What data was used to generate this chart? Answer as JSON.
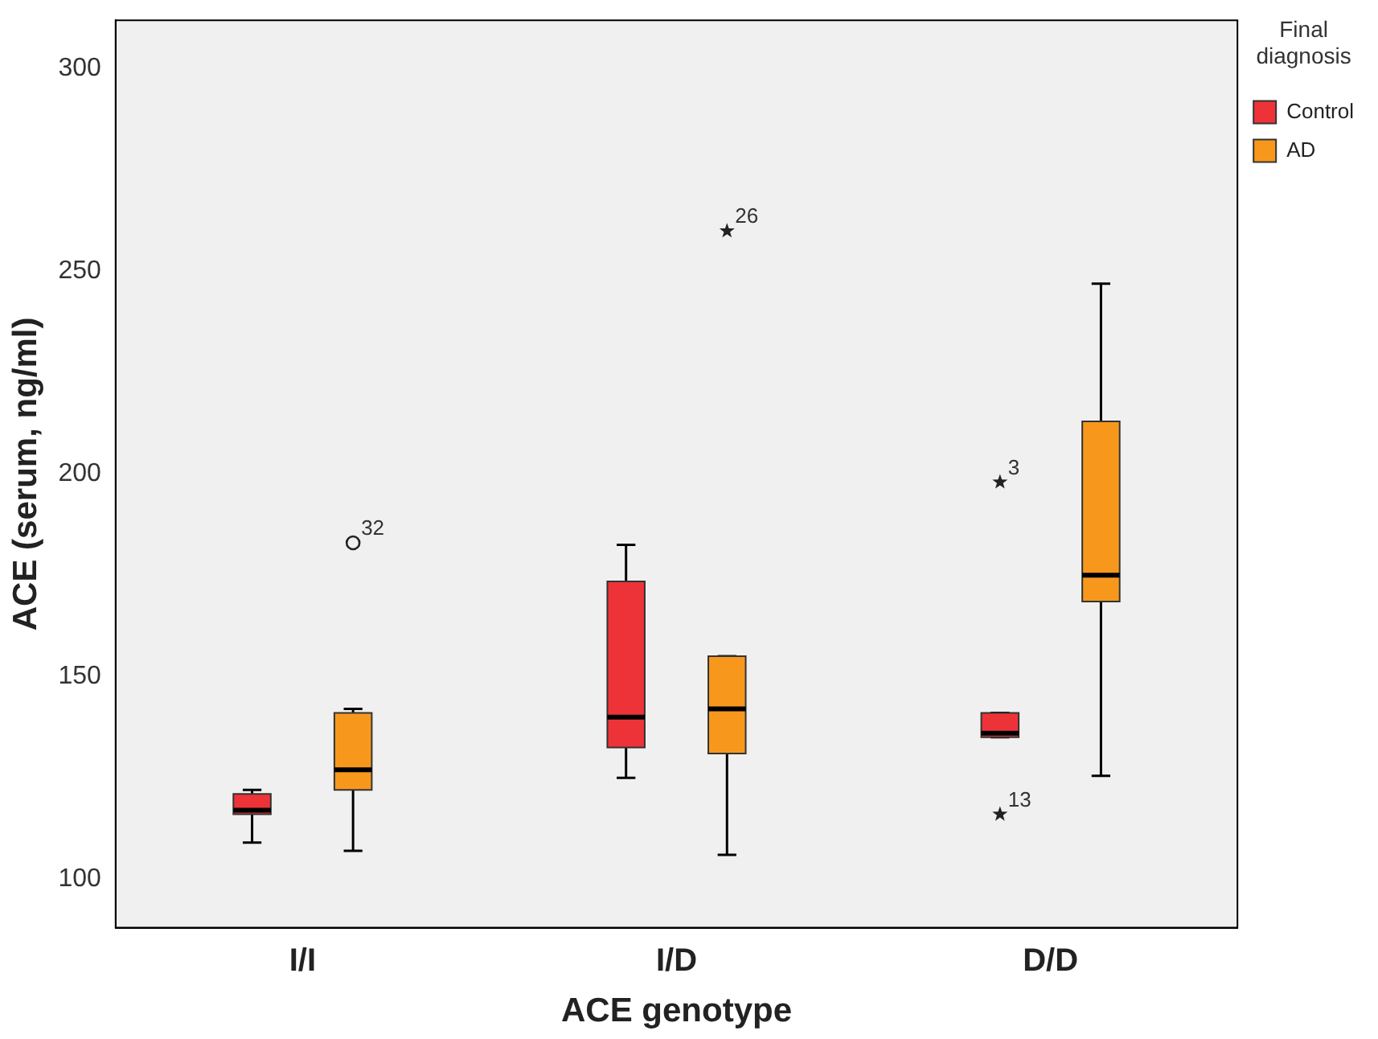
{
  "chart_data": {
    "type": "box",
    "xlabel": "ACE genotype",
    "ylabel": "ACE (serum, ng/ml)",
    "legend_title": "Final diagnosis",
    "legend": "top right",
    "grid": false,
    "categories": [
      "I/I",
      "I/D",
      "D/D"
    ],
    "ylim": [
      88,
      312
    ],
    "yticks": [
      100,
      150,
      200,
      250,
      300
    ],
    "series": [
      {
        "name": "Control",
        "color": "#ee3338",
        "boxes": [
          {
            "low": 109,
            "q1": 116,
            "median": 117,
            "q3": 121,
            "high": 122
          },
          {
            "low": 125,
            "q1": 132.5,
            "median": 140,
            "q3": 173.5,
            "high": 182.5
          },
          {
            "low": 135,
            "q1": 135,
            "median": 136,
            "q3": 141,
            "high": 141,
            "outliers": [
              198,
              116
            ]
          }
        ]
      },
      {
        "name": "AD",
        "color": "#f7981d",
        "boxes": [
          {
            "low": 107,
            "q1": 122,
            "median": 127,
            "q3": 141,
            "high": 142,
            "outliers": [
              183
            ]
          },
          {
            "low": 106,
            "q1": 131,
            "median": 142,
            "q3": 155,
            "high": 155,
            "outliers": [
              260
            ]
          },
          {
            "low": 125.5,
            "q1": 168.5,
            "median": 175,
            "q3": 213,
            "high": 247
          }
        ]
      }
    ],
    "annotations": [
      "32",
      "26",
      "3",
      "13"
    ]
  }
}
